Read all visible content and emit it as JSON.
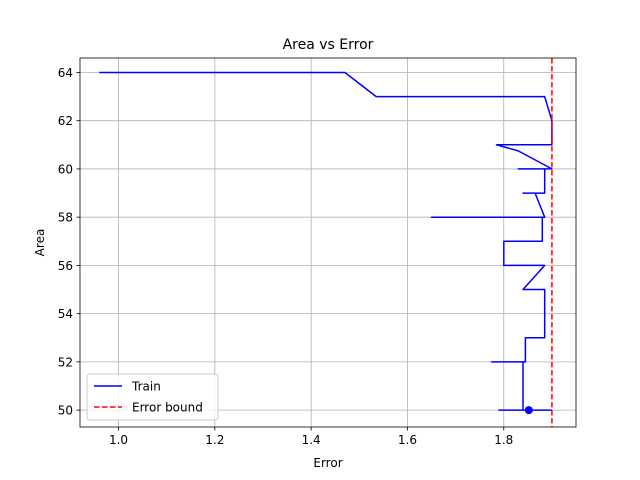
{
  "chart_data": {
    "type": "line",
    "title": "Area vs Error",
    "xlabel": "Error",
    "ylabel": "Area",
    "xlim": [
      0.92,
      1.95
    ],
    "ylim": [
      49.3,
      64.6
    ],
    "x_ticks": [
      1.0,
      1.2,
      1.4,
      1.6,
      1.8
    ],
    "x_tick_labels": [
      "1.0",
      "1.2",
      "1.4",
      "1.6",
      "1.8"
    ],
    "y_ticks": [
      50,
      52,
      54,
      56,
      58,
      60,
      62,
      64
    ],
    "y_tick_labels": [
      "50",
      "52",
      "54",
      "56",
      "58",
      "60",
      "62",
      "64"
    ],
    "grid": true,
    "legend_position": "lower-left",
    "series": [
      {
        "name": "Train",
        "color": "#0000ff",
        "style": "solid",
        "points": [
          [
            0.96,
            64
          ],
          [
            1.47,
            64
          ],
          [
            1.535,
            63
          ],
          [
            1.885,
            63
          ],
          [
            1.9,
            62
          ],
          [
            1.9,
            61
          ],
          [
            1.785,
            61
          ],
          [
            1.83,
            60.75
          ],
          [
            1.9,
            60
          ],
          [
            1.83,
            60
          ],
          [
            1.885,
            60
          ],
          [
            1.885,
            59
          ],
          [
            1.84,
            59
          ],
          [
            1.865,
            59
          ],
          [
            1.885,
            58
          ],
          [
            1.65,
            58
          ],
          [
            1.88,
            58
          ],
          [
            1.88,
            57
          ],
          [
            1.8,
            57
          ],
          [
            1.8,
            56
          ],
          [
            1.885,
            56
          ],
          [
            1.84,
            55
          ],
          [
            1.885,
            55
          ],
          [
            1.885,
            53
          ],
          [
            1.845,
            53
          ],
          [
            1.845,
            52
          ],
          [
            1.775,
            52
          ],
          [
            1.84,
            52
          ],
          [
            1.84,
            50
          ],
          [
            1.79,
            50
          ],
          [
            1.9,
            50
          ]
        ]
      },
      {
        "name": "Error bound",
        "color": "#ff0000",
        "style": "dashed",
        "x": 1.9
      }
    ],
    "marker": {
      "series": "Train",
      "x": 1.852,
      "y": 50,
      "color": "#0000ff"
    }
  }
}
